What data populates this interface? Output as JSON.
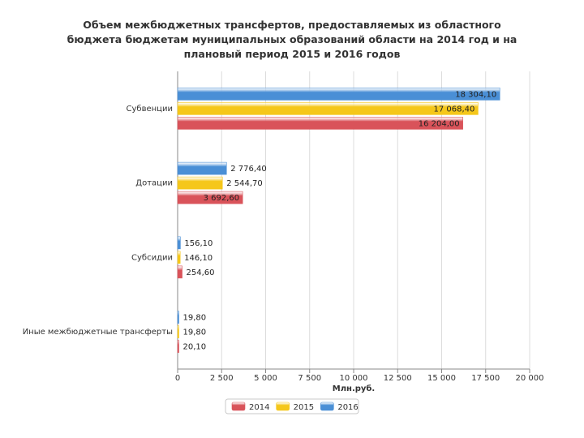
{
  "chart_data": {
    "type": "bar",
    "orientation": "horizontal",
    "title_lines": [
      "Объем межбюджетных трансфертов, предоставляемых из областного",
      "бюджета бюджетам муниципальных образований области на 2014 год и на",
      "плановый период 2015 и 2016 годов"
    ],
    "xlabel": "Млн.руб.",
    "categories": [
      "Субвенции",
      "Дотации",
      "Субсидии",
      "Иные межбюджетные трансферты"
    ],
    "series": [
      {
        "name": "2016",
        "color": "#4a8fd6",
        "values": [
          18304.1,
          2776.4,
          156.1,
          19.8
        ],
        "labels": [
          "18 304,10",
          "2 776,40",
          "156,10",
          "19,80"
        ]
      },
      {
        "name": "2015",
        "color": "#f5c71a",
        "values": [
          17068.4,
          2544.7,
          146.1,
          19.8
        ],
        "labels": [
          "17 068,40",
          "2 544,70",
          "146,10",
          "19,80"
        ]
      },
      {
        "name": "2014",
        "color": "#d9535a",
        "values": [
          16204.0,
          3692.6,
          254.6,
          20.1
        ],
        "labels": [
          "16 204,00",
          "3 692,60",
          "254,60",
          "20,10"
        ]
      }
    ],
    "legend_order": [
      "2014",
      "2015",
      "2016"
    ],
    "legend_position": "bottom",
    "xlim": [
      0,
      20000
    ],
    "xticks": [
      0,
      2500,
      5000,
      7500,
      10000,
      12500,
      15000,
      17500,
      20000
    ],
    "xtick_labels": [
      "0",
      "2 500",
      "5 000",
      "7 500",
      "10 000",
      "12 500",
      "15 000",
      "17 500",
      "20 000"
    ],
    "grid": "vertical"
  }
}
